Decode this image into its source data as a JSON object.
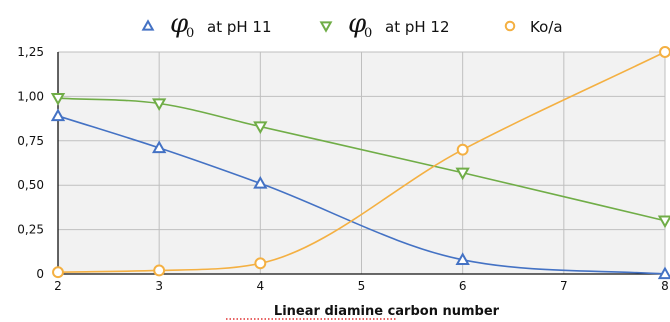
{
  "chart_data": {
    "type": "line",
    "title": "",
    "xlabel": "Linear diamine carbon number",
    "ylabel": "",
    "xlim": [
      2,
      8
    ],
    "ylim": [
      0,
      1.25
    ],
    "x_ticks": [
      2,
      3,
      4,
      5,
      6,
      7,
      8
    ],
    "x_tick_labels": [
      "2",
      "3",
      "4",
      "5",
      "6",
      "7",
      "8"
    ],
    "y_ticks": [
      0,
      0.25,
      0.5,
      0.75,
      1.0,
      1.25
    ],
    "y_tick_labels": [
      "0",
      "0,25",
      "0,50",
      "0,75",
      "1,00",
      "1,25"
    ],
    "grid": true,
    "legend_position": "top",
    "series": [
      {
        "name": "at pH 11",
        "legend_symbol": "φ",
        "legend_subscript": "0",
        "color": "#4472c4",
        "marker": "triangle-up",
        "x": [
          2,
          3,
          4,
          6,
          8
        ],
        "y": [
          0.89,
          0.71,
          0.51,
          0.08,
          0.0
        ]
      },
      {
        "name": "at pH 12",
        "legend_symbol": "φ",
        "legend_subscript": "0",
        "color": "#70ad47",
        "marker": "triangle-down",
        "x": [
          2,
          3,
          4,
          6,
          8
        ],
        "y": [
          0.99,
          0.96,
          0.83,
          0.57,
          0.3
        ]
      },
      {
        "name": "Ko/a",
        "color": "#f4b042",
        "marker": "circle",
        "x": [
          2,
          3,
          4,
          6,
          8
        ],
        "y": [
          0.01,
          0.02,
          0.06,
          0.7,
          1.25
        ]
      }
    ]
  }
}
